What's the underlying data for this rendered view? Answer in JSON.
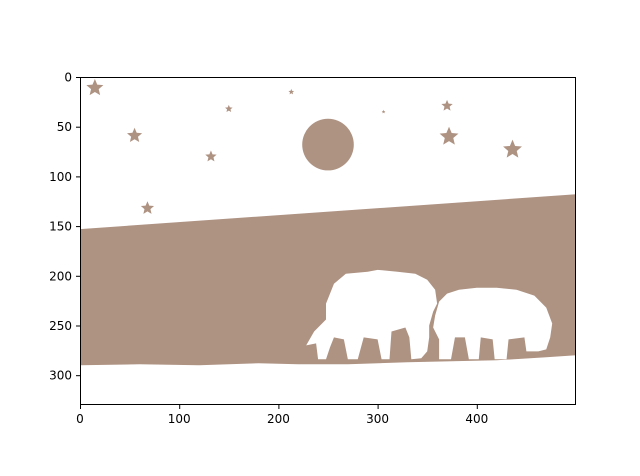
{
  "chart_data": {
    "type": "image",
    "xlim": [
      0,
      500
    ],
    "ylim": [
      330,
      0
    ],
    "x_ticks": [
      0,
      100,
      200,
      300,
      400
    ],
    "y_ticks": [
      0,
      50,
      100,
      150,
      200,
      250,
      300
    ],
    "x_tick_labels": [
      "0",
      "100",
      "200",
      "300",
      "400"
    ],
    "y_tick_labels": [
      "0",
      "50",
      "100",
      "150",
      "200",
      "250",
      "300"
    ],
    "grid": false,
    "colors": {
      "fill": "#ae9282",
      "background": "#ffffff",
      "axis": "#000000"
    },
    "moon": {
      "cx": 250,
      "cy": 68,
      "r": 26
    },
    "stars": [
      {
        "x": 15,
        "y": 11,
        "size": 9
      },
      {
        "x": 55,
        "y": 59,
        "size": 8
      },
      {
        "x": 68,
        "y": 132,
        "size": 7
      },
      {
        "x": 132,
        "y": 80,
        "size": 6
      },
      {
        "x": 150,
        "y": 32,
        "size": 4
      },
      {
        "x": 213,
        "y": 15,
        "size": 3
      },
      {
        "x": 306,
        "y": 35,
        "size": 2
      },
      {
        "x": 370,
        "y": 29,
        "size": 6
      },
      {
        "x": 372,
        "y": 60,
        "size": 10
      },
      {
        "x": 436,
        "y": 73,
        "size": 10
      }
    ],
    "ground": {
      "top_left_y": 153,
      "top_right_y": 118,
      "bottom_y": 290,
      "bottom_right_y": 280
    }
  }
}
